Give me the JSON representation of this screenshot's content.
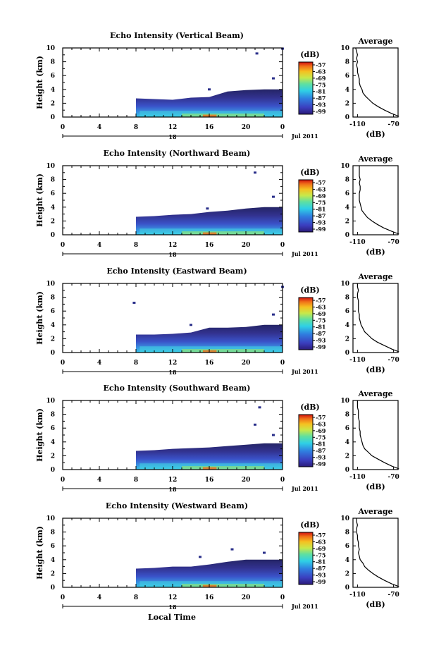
{
  "figure": {
    "month_label": "Jul 2011",
    "day_label": "18",
    "common_xlabel": "Local Time"
  },
  "chart_data": [
    {
      "type": "heatmap",
      "title": "Echo Intensity (Vertical Beam)",
      "xlabel": "",
      "ylabel": "Height (km)",
      "xlim": [
        0,
        24
      ],
      "ylim": [
        0,
        10
      ],
      "xticks": [
        "0",
        "4",
        "8",
        "12",
        "16",
        "20",
        "0"
      ],
      "yticks": [
        "0",
        "2",
        "4",
        "6",
        "8",
        "10"
      ],
      "colorbar": {
        "unit": "(dB)",
        "ticks": [
          "-57",
          "-63",
          "-69",
          "-75",
          "-81",
          "-87",
          "-93",
          "-99"
        ]
      },
      "echo_top_km": [
        [
          8,
          2.7
        ],
        [
          10,
          2.6
        ],
        [
          12,
          2.5
        ],
        [
          14,
          2.8
        ],
        [
          16,
          2.9
        ],
        [
          18,
          3.7
        ],
        [
          20,
          3.9
        ],
        [
          22,
          4.0
        ],
        [
          24,
          4.0
        ]
      ],
      "isolated_echoes": [
        [
          21.2,
          9.2
        ],
        [
          24,
          9.9
        ],
        [
          23,
          5.6
        ],
        [
          16,
          4.0
        ]
      ],
      "average": {
        "title": "Average",
        "xlabel": "(dB)",
        "xticks": [
          "-110",
          "-70"
        ],
        "xlim": [
          -115,
          -65
        ],
        "ylim": [
          0,
          10
        ],
        "profile": [
          [
            -64,
            0.1
          ],
          [
            -72,
            0.5
          ],
          [
            -80,
            1.0
          ],
          [
            -87,
            1.5
          ],
          [
            -93,
            2.0
          ],
          [
            -97,
            2.5
          ],
          [
            -101,
            3.0
          ],
          [
            -104,
            3.5
          ],
          [
            -105,
            4.0
          ],
          [
            -107,
            4.5
          ],
          [
            -108,
            5.0
          ],
          [
            -108,
            5.5
          ],
          [
            -109,
            6.0
          ],
          [
            -110,
            6.5
          ],
          [
            -110,
            7.0
          ],
          [
            -111,
            7.5
          ],
          [
            -110,
            8.0
          ],
          [
            -111,
            8.5
          ],
          [
            -110,
            9.0
          ],
          [
            -111,
            9.5
          ],
          [
            -112,
            10.0
          ]
        ]
      }
    },
    {
      "type": "heatmap",
      "title": "Echo Intensity (Northward Beam)",
      "xlabel": "",
      "ylabel": "Height (km)",
      "xlim": [
        0,
        24
      ],
      "ylim": [
        0,
        10
      ],
      "xticks": [
        "0",
        "4",
        "8",
        "12",
        "16",
        "20",
        "0"
      ],
      "yticks": [
        "0",
        "2",
        "4",
        "6",
        "8",
        "10"
      ],
      "colorbar": {
        "unit": "(dB)",
        "ticks": [
          "-57",
          "-63",
          "-69",
          "-75",
          "-81",
          "-87",
          "-93",
          "-99"
        ]
      },
      "echo_top_km": [
        [
          8,
          2.6
        ],
        [
          10,
          2.7
        ],
        [
          12,
          2.9
        ],
        [
          14,
          3.0
        ],
        [
          16,
          3.3
        ],
        [
          18,
          3.5
        ],
        [
          20,
          3.8
        ],
        [
          22,
          4.0
        ],
        [
          24,
          4.0
        ]
      ],
      "isolated_echoes": [
        [
          21.0,
          9.0
        ],
        [
          23.0,
          5.5
        ],
        [
          15.8,
          3.8
        ]
      ],
      "average": {
        "title": "Average",
        "xlabel": "(dB)",
        "xticks": [
          "-110",
          "-70"
        ],
        "xlim": [
          -115,
          -65
        ],
        "ylim": [
          0,
          10
        ],
        "profile": [
          [
            -64,
            0.1
          ],
          [
            -72,
            0.5
          ],
          [
            -81,
            1.0
          ],
          [
            -88,
            1.5
          ],
          [
            -94,
            2.0
          ],
          [
            -99,
            2.5
          ],
          [
            -102,
            3.0
          ],
          [
            -105,
            3.5
          ],
          [
            -106,
            4.0
          ],
          [
            -107,
            4.5
          ],
          [
            -108,
            5.0
          ],
          [
            -108,
            5.5
          ],
          [
            -108,
            6.0
          ],
          [
            -107,
            6.5
          ],
          [
            -107,
            7.0
          ],
          [
            -108,
            7.5
          ],
          [
            -107,
            8.0
          ],
          [
            -108,
            8.5
          ],
          [
            -108,
            9.0
          ],
          [
            -108,
            9.5
          ],
          [
            -108,
            10.0
          ]
        ]
      }
    },
    {
      "type": "heatmap",
      "title": "Echo Intensity (Eastward Beam)",
      "xlabel": "",
      "ylabel": "Height (km)",
      "xlim": [
        0,
        24
      ],
      "ylim": [
        0,
        10
      ],
      "xticks": [
        "0",
        "4",
        "8",
        "12",
        "16",
        "20",
        "0"
      ],
      "yticks": [
        "0",
        "2",
        "4",
        "6",
        "8",
        "10"
      ],
      "colorbar": {
        "unit": "(dB)",
        "ticks": [
          "-57",
          "-63",
          "-69",
          "-75",
          "-81",
          "-87",
          "-93",
          "-99"
        ]
      },
      "echo_top_km": [
        [
          8,
          2.6
        ],
        [
          10,
          2.6
        ],
        [
          12,
          2.7
        ],
        [
          14,
          2.9
        ],
        [
          16,
          3.6
        ],
        [
          18,
          3.6
        ],
        [
          20,
          3.7
        ],
        [
          22,
          4.0
        ],
        [
          24,
          4.0
        ]
      ],
      "isolated_echoes": [
        [
          7.8,
          7.2
        ],
        [
          24,
          9.5
        ],
        [
          23,
          5.5
        ],
        [
          14,
          4.0
        ]
      ],
      "average": {
        "title": "Average",
        "xlabel": "(dB)",
        "xticks": [
          "-110",
          "-70"
        ],
        "xlim": [
          -115,
          -65
        ],
        "ylim": [
          0,
          10
        ],
        "profile": [
          [
            -64,
            0.1
          ],
          [
            -72,
            0.5
          ],
          [
            -80,
            1.0
          ],
          [
            -88,
            1.5
          ],
          [
            -94,
            2.0
          ],
          [
            -98,
            2.5
          ],
          [
            -102,
            3.0
          ],
          [
            -104,
            3.5
          ],
          [
            -106,
            4.0
          ],
          [
            -107,
            4.5
          ],
          [
            -108,
            5.0
          ],
          [
            -108,
            5.5
          ],
          [
            -109,
            6.0
          ],
          [
            -109,
            6.5
          ],
          [
            -109,
            7.0
          ],
          [
            -109,
            7.5
          ],
          [
            -110,
            8.0
          ],
          [
            -110,
            8.5
          ],
          [
            -109,
            9.0
          ],
          [
            -110,
            9.5
          ],
          [
            -110,
            10.0
          ]
        ]
      }
    },
    {
      "type": "heatmap",
      "title": "Echo Intensity (Southward Beam)",
      "xlabel": "",
      "ylabel": "Height (km)",
      "xlim": [
        0,
        24
      ],
      "ylim": [
        0,
        10
      ],
      "xticks": [
        "0",
        "4",
        "8",
        "12",
        "16",
        "20",
        "0"
      ],
      "yticks": [
        "0",
        "2",
        "4",
        "6",
        "8",
        "10"
      ],
      "colorbar": {
        "unit": "(dB)",
        "ticks": [
          "-57",
          "-63",
          "-69",
          "-75",
          "-81",
          "-87",
          "-93",
          "-99"
        ]
      },
      "echo_top_km": [
        [
          8,
          2.7
        ],
        [
          10,
          2.8
        ],
        [
          12,
          3.0
        ],
        [
          14,
          3.1
        ],
        [
          16,
          3.2
        ],
        [
          18,
          3.4
        ],
        [
          20,
          3.6
        ],
        [
          22,
          3.8
        ],
        [
          24,
          3.8
        ]
      ],
      "isolated_echoes": [
        [
          21.5,
          9.0
        ],
        [
          21.0,
          6.5
        ],
        [
          23,
          5.0
        ]
      ],
      "average": {
        "title": "Average",
        "xlabel": "(dB)",
        "xticks": [
          "-110",
          "-70"
        ],
        "xlim": [
          -115,
          -65
        ],
        "ylim": [
          0,
          10
        ],
        "profile": [
          [
            -64,
            0.1
          ],
          [
            -72,
            0.5
          ],
          [
            -80,
            1.0
          ],
          [
            -87,
            1.5
          ],
          [
            -94,
            2.0
          ],
          [
            -98,
            2.5
          ],
          [
            -102,
            3.0
          ],
          [
            -104,
            3.5
          ],
          [
            -105,
            4.0
          ],
          [
            -106,
            4.5
          ],
          [
            -107,
            5.0
          ],
          [
            -107,
            5.5
          ],
          [
            -108,
            6.0
          ],
          [
            -108,
            6.5
          ],
          [
            -108,
            7.0
          ],
          [
            -109,
            7.5
          ],
          [
            -109,
            8.0
          ],
          [
            -109,
            8.5
          ],
          [
            -110,
            9.0
          ],
          [
            -110,
            9.5
          ],
          [
            -110,
            10.0
          ]
        ]
      }
    },
    {
      "type": "heatmap",
      "title": "Echo Intensity (Westward Beam)",
      "xlabel": "",
      "ylabel": "Height (km)",
      "xlim": [
        0,
        24
      ],
      "ylim": [
        0,
        10
      ],
      "xticks": [
        "0",
        "4",
        "8",
        "12",
        "16",
        "20",
        "0"
      ],
      "yticks": [
        "0",
        "2",
        "4",
        "6",
        "8",
        "10"
      ],
      "colorbar": {
        "unit": "(dB)",
        "ticks": [
          "-57",
          "-63",
          "-69",
          "-75",
          "-81",
          "-87",
          "-93",
          "-99"
        ]
      },
      "echo_top_km": [
        [
          8,
          2.7
        ],
        [
          10,
          2.8
        ],
        [
          12,
          3.0
        ],
        [
          14,
          3.0
        ],
        [
          16,
          3.3
        ],
        [
          18,
          3.7
        ],
        [
          20,
          4.0
        ],
        [
          22,
          4.0
        ],
        [
          24,
          4.0
        ]
      ],
      "isolated_echoes": [
        [
          18.5,
          5.5
        ],
        [
          22,
          5.0
        ],
        [
          15,
          4.4
        ]
      ],
      "average": {
        "title": "Average",
        "xlabel": "(dB)",
        "xticks": [
          "-110",
          "-70"
        ],
        "xlim": [
          -115,
          -65
        ],
        "ylim": [
          0,
          10
        ],
        "profile": [
          [
            -64,
            0.1
          ],
          [
            -72,
            0.5
          ],
          [
            -80,
            1.0
          ],
          [
            -87,
            1.5
          ],
          [
            -93,
            2.0
          ],
          [
            -98,
            2.5
          ],
          [
            -102,
            3.0
          ],
          [
            -104,
            3.5
          ],
          [
            -107,
            4.0
          ],
          [
            -108,
            4.5
          ],
          [
            -109,
            5.0
          ],
          [
            -108,
            5.5
          ],
          [
            -109,
            6.0
          ],
          [
            -109,
            6.5
          ],
          [
            -110,
            7.0
          ],
          [
            -110,
            7.5
          ],
          [
            -111,
            8.0
          ],
          [
            -111,
            8.5
          ],
          [
            -110,
            9.0
          ],
          [
            -111,
            9.5
          ],
          [
            -111,
            10.0
          ]
        ]
      }
    }
  ]
}
